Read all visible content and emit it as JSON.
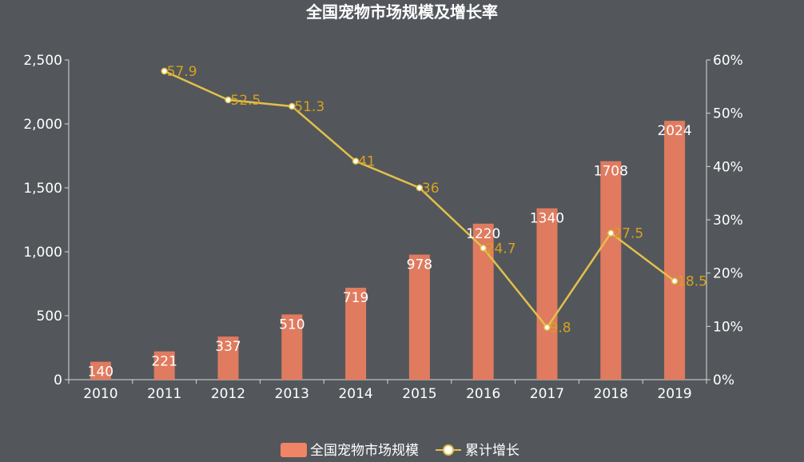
{
  "chart_data": {
    "type": "bar",
    "title": "全国宠物市场规模及增长率",
    "categories": [
      "2010",
      "2011",
      "2012",
      "2013",
      "2014",
      "2015",
      "2016",
      "2017",
      "2018",
      "2019"
    ],
    "series": [
      {
        "name": "全国宠物市场规模",
        "type": "bar",
        "axis": "left",
        "values": [
          140,
          221,
          337,
          510,
          719,
          978,
          1220,
          1340,
          1708,
          2024
        ],
        "color": "#e07b5f"
      },
      {
        "name": "累计增长",
        "type": "line",
        "axis": "right",
        "values": [
          null,
          57.9,
          52.5,
          51.3,
          41,
          36,
          24.7,
          9.8,
          27.5,
          18.5
        ],
        "color": "#e2c04c"
      }
    ],
    "y_left": {
      "min": 0,
      "max": 2500,
      "ticks": [
        "0",
        "500",
        "1,000",
        "1,500",
        "2,000",
        "2,500"
      ],
      "tick_values": [
        0,
        500,
        1000,
        1500,
        2000,
        2500
      ]
    },
    "y_right": {
      "min": 0,
      "max": 60,
      "ticks": [
        "0%",
        "10%",
        "20%",
        "30%",
        "40%",
        "50%",
        "60%"
      ],
      "tick_values": [
        0,
        10,
        20,
        30,
        40,
        50,
        60
      ]
    },
    "grid": false,
    "legend_position": "bottom-center",
    "legend": [
      "全国宠物市场规模",
      "累计增长"
    ],
    "colors": {
      "background": "#53575b",
      "bar": "#e07b5f",
      "legend_bar": "#f08466",
      "line": "#e2c04c",
      "line_label": "#d6a11f",
      "axis": "#d8d8d8"
    }
  }
}
